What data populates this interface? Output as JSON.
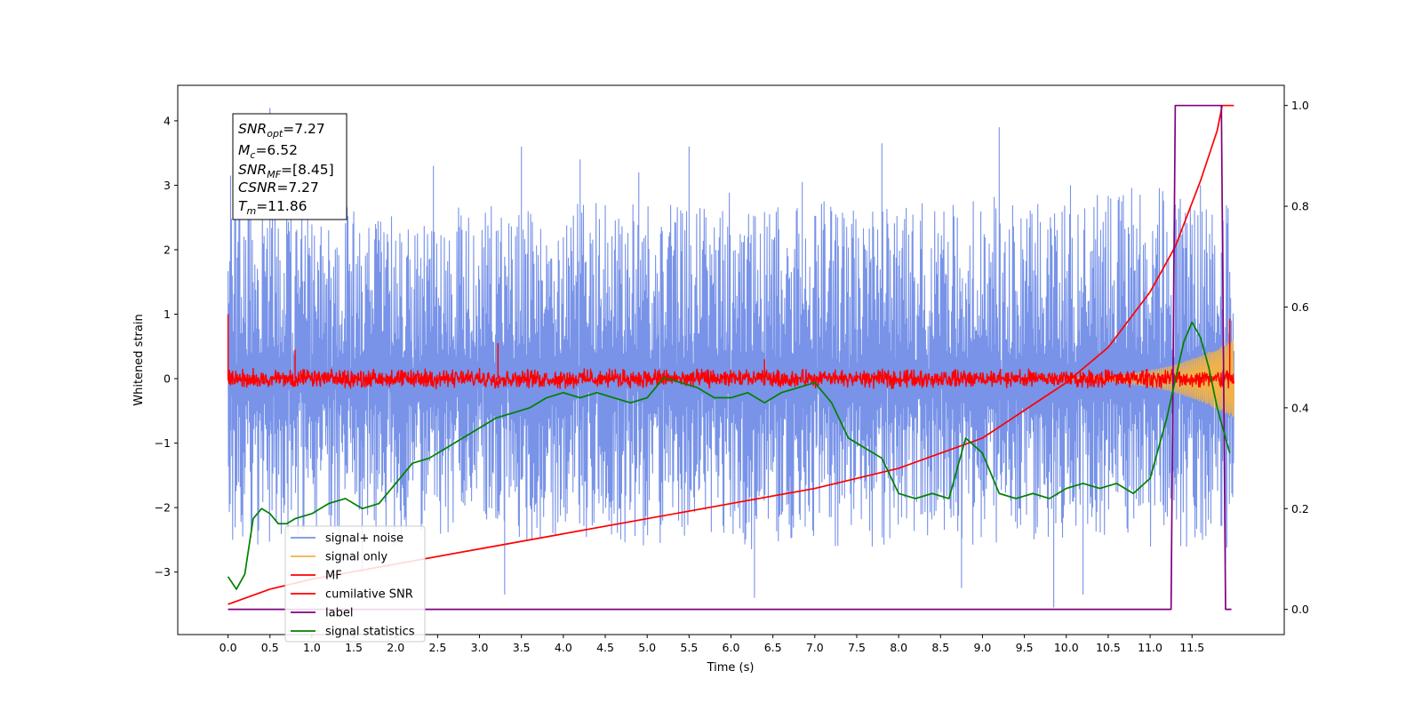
{
  "chart_data": {
    "type": "line",
    "xlabel": "Time (s)",
    "ylabel": "Whitened strain",
    "xlim": [
      -0.6,
      12.6
    ],
    "ylim": [
      -3.97,
      4.55
    ],
    "ylim_right": [
      -0.05,
      1.04
    ],
    "x_ticks": [
      "0.0",
      "0.5",
      "1.0",
      "1.5",
      "2.0",
      "2.5",
      "3.0",
      "3.5",
      "4.0",
      "4.5",
      "5.0",
      "5.5",
      "6.0",
      "6.5",
      "7.0",
      "7.5",
      "8.0",
      "8.5",
      "9.0",
      "9.5",
      "10.0",
      "10.5",
      "11.0",
      "11.5"
    ],
    "y_ticks_left": [
      "4",
      "3",
      "2",
      "1",
      "0",
      "−1",
      "−2",
      "−3"
    ],
    "y_ticks_right": [
      "1.0",
      "0.8",
      "0.6",
      "0.4",
      "0.2",
      "0.0"
    ],
    "grid": false,
    "legend_placement": "lower-left",
    "info_box": {
      "placement": "upper-left",
      "lines": [
        {
          "sym": "SNR",
          "sub": "opt",
          "rest": "=7.27"
        },
        {
          "sym": "M",
          "sub": "c",
          "rest": "=6.52"
        },
        {
          "sym": "SNR",
          "sub": "MF",
          "rest": "=[8.45]"
        },
        {
          "sym": "CSNR",
          "sub": "",
          "rest": "=7.27"
        },
        {
          "sym": "T",
          "sub": "m",
          "rest": "=11.86"
        }
      ]
    },
    "series": [
      {
        "name": "signal+ noise",
        "color": "#7893e8",
        "axis": "left",
        "x_range": [
          0.0,
          12.0
        ],
        "envelope_upper": [
          3.1,
          2.8,
          2.6,
          2.7,
          2.5,
          2.6,
          2.7,
          2.6,
          2.8,
          2.7,
          2.8,
          2.6,
          2.9,
          2.7,
          2.8,
          2.6,
          2.8,
          2.7,
          2.9,
          2.8,
          2.7,
          2.9,
          3.0,
          2.8,
          2.7
        ],
        "envelope_lower": [
          -2.5,
          -2.6,
          -2.5,
          -2.4,
          -2.6,
          -2.4,
          -2.5,
          -2.6,
          -2.4,
          -2.5,
          -2.6,
          -2.5,
          -2.7,
          -2.6,
          -2.5,
          -2.7,
          -2.6,
          -2.5,
          -2.6,
          -2.5,
          -2.6,
          -2.5,
          -2.6,
          -2.7,
          -2.6
        ],
        "spikes": [
          [
            0.03,
            3.15
          ],
          [
            0.5,
            4.2
          ],
          [
            0.95,
            3.5
          ],
          [
            2.45,
            3.3
          ],
          [
            3.22,
            2.3
          ],
          [
            3.5,
            3.6
          ],
          [
            4.2,
            3.4
          ],
          [
            4.9,
            3.2
          ],
          [
            5.5,
            3.6
          ],
          [
            5.9,
            2.6
          ],
          [
            6.85,
            3.05
          ],
          [
            7.2,
            2.6
          ],
          [
            7.8,
            3.65
          ],
          [
            8.05,
            2.3
          ],
          [
            9.2,
            3.9
          ],
          [
            10.05,
            3.0
          ],
          [
            11.3,
            2.7
          ],
          [
            11.6,
            3.0
          ],
          [
            3.3,
            -3.35
          ],
          [
            6.28,
            -3.4
          ],
          [
            8.75,
            -3.25
          ],
          [
            9.85,
            -3.55
          ],
          [
            10.2,
            -3.35
          ],
          [
            1.6,
            -3.0
          ],
          [
            11.9,
            -2.9
          ]
        ]
      },
      {
        "name": "signal only",
        "color": "#f0b24a",
        "axis": "left",
        "chirp_start": 9.7,
        "amplitude_end": 0.6
      },
      {
        "name": "MF",
        "color": "#ff0000",
        "axis": "left",
        "band": [
          -0.12,
          0.12
        ],
        "noise_amplitude": 0.16,
        "spikes": [
          [
            0.0,
            1.0
          ],
          [
            0.0,
            0.4
          ],
          [
            0.8,
            0.45
          ],
          [
            3.22,
            0.55
          ],
          [
            6.4,
            0.3
          ],
          [
            11.95,
            0.93
          ]
        ]
      },
      {
        "name": "cumilative SNR",
        "color": "#ff0000",
        "axis": "right",
        "x": [
          0.0,
          0.5,
          1.0,
          2.0,
          3.0,
          4.0,
          5.0,
          6.0,
          7.0,
          8.0,
          9.0,
          10.0,
          10.5,
          11.0,
          11.3,
          11.6,
          11.8,
          11.86,
          12.0
        ],
        "y": [
          0.01,
          0.04,
          0.06,
          0.09,
          0.12,
          0.15,
          0.18,
          0.21,
          0.24,
          0.28,
          0.34,
          0.45,
          0.52,
          0.63,
          0.72,
          0.85,
          0.95,
          1.0,
          1.0
        ]
      },
      {
        "name": "label",
        "color": "#800080",
        "axis": "right",
        "x": [
          0.0,
          11.25,
          11.3,
          11.85,
          11.9,
          11.97
        ],
        "y": [
          0.0,
          0.0,
          1.0,
          1.0,
          0.0,
          0.0
        ]
      },
      {
        "name": "signal statistics",
        "color": "#008000",
        "axis": "right",
        "x": [
          0.0,
          0.1,
          0.2,
          0.3,
          0.4,
          0.5,
          0.6,
          0.7,
          0.8,
          1.0,
          1.2,
          1.4,
          1.6,
          1.8,
          2.0,
          2.2,
          2.4,
          2.6,
          2.8,
          3.0,
          3.2,
          3.4,
          3.6,
          3.8,
          4.0,
          4.2,
          4.4,
          4.6,
          4.8,
          5.0,
          5.2,
          5.4,
          5.6,
          5.8,
          6.0,
          6.2,
          6.4,
          6.6,
          6.8,
          7.0,
          7.2,
          7.4,
          7.6,
          7.8,
          8.0,
          8.2,
          8.4,
          8.6,
          8.8,
          9.0,
          9.2,
          9.4,
          9.6,
          9.8,
          10.0,
          10.2,
          10.4,
          10.6,
          10.8,
          11.0,
          11.2,
          11.4,
          11.5,
          11.6,
          11.7,
          11.8,
          11.95
        ],
        "y": [
          0.065,
          0.04,
          0.07,
          0.18,
          0.2,
          0.19,
          0.17,
          0.17,
          0.18,
          0.19,
          0.21,
          0.22,
          0.2,
          0.21,
          0.25,
          0.29,
          0.3,
          0.32,
          0.34,
          0.36,
          0.38,
          0.39,
          0.4,
          0.42,
          0.43,
          0.42,
          0.43,
          0.42,
          0.41,
          0.42,
          0.46,
          0.45,
          0.44,
          0.42,
          0.42,
          0.43,
          0.41,
          0.43,
          0.44,
          0.45,
          0.41,
          0.34,
          0.32,
          0.3,
          0.23,
          0.22,
          0.23,
          0.22,
          0.34,
          0.31,
          0.23,
          0.22,
          0.23,
          0.22,
          0.24,
          0.25,
          0.24,
          0.25,
          0.23,
          0.26,
          0.38,
          0.53,
          0.57,
          0.54,
          0.48,
          0.4,
          0.31
        ]
      }
    ]
  }
}
